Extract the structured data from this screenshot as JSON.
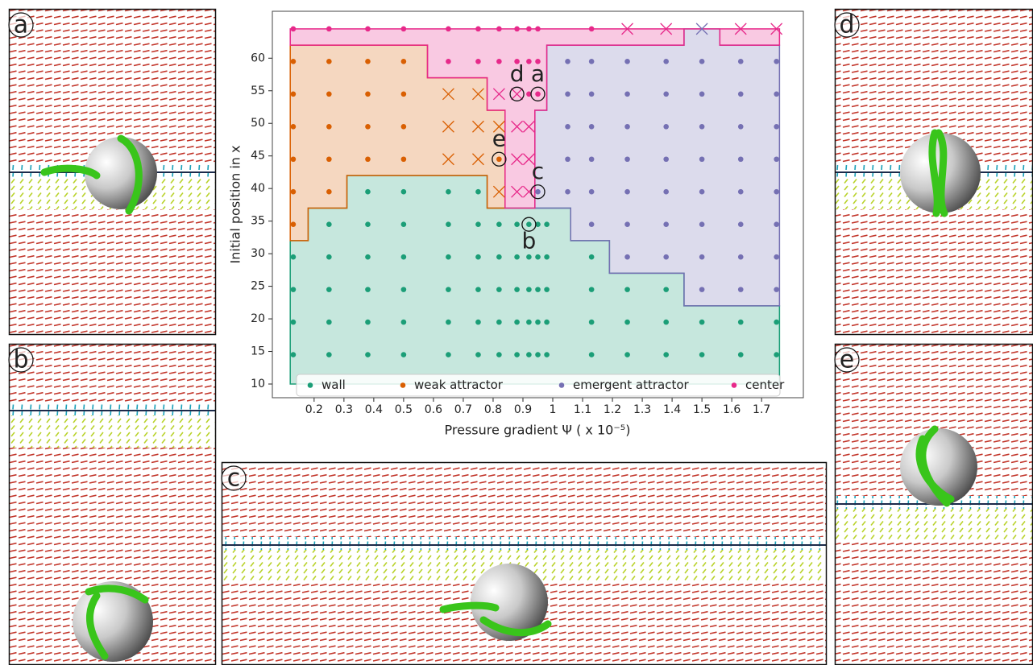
{
  "chart_data": {
    "type": "scatter",
    "xlabel": "Pressure gradient Ψ ( x 10⁻⁵)",
    "ylabel": "Initial position in x",
    "xlim": [
      0.06,
      1.84
    ],
    "ylim": [
      7.9,
      67.2
    ],
    "xticks": [
      0.2,
      0.3,
      0.4,
      0.5,
      0.6,
      0.7,
      0.8,
      0.9,
      1.0,
      1.1,
      1.2,
      1.3,
      1.4,
      1.5,
      1.6,
      1.7
    ],
    "yticks": [
      10,
      15,
      20,
      25,
      30,
      35,
      40,
      45,
      50,
      55,
      60
    ],
    "legend": "lower center",
    "series": [
      {
        "name": "wall",
        "color": "#1b9e77",
        "x": [
          0.13,
          0.25,
          0.38,
          0.5,
          0.65,
          0.75,
          0.82,
          0.88,
          0.92,
          0.95,
          0.98,
          1.13,
          1.25,
          1.38,
          1.5,
          1.63,
          1.75,
          0.13,
          0.25,
          0.38,
          0.5,
          0.65,
          0.75,
          0.82,
          0.88,
          0.92,
          0.95,
          0.98,
          1.13,
          1.25,
          1.38,
          1.5,
          1.63,
          1.75,
          0.13,
          0.25,
          0.38,
          0.5,
          0.65,
          0.75,
          0.82,
          0.88,
          0.92,
          0.95,
          0.98,
          1.13,
          1.25,
          1.38,
          0.13,
          0.25,
          0.38,
          0.5,
          0.65,
          0.75,
          0.82,
          0.88,
          0.92,
          0.95,
          0.98,
          1.13,
          0.25,
          0.38,
          0.5,
          0.65,
          0.75,
          0.82,
          0.88,
          0.92,
          0.95,
          0.98,
          0.38,
          0.5,
          0.65,
          0.75
        ],
        "values": [
          14.5,
          14.5,
          14.5,
          14.5,
          14.5,
          14.5,
          14.5,
          14.5,
          14.5,
          14.5,
          14.5,
          14.5,
          14.5,
          14.5,
          14.5,
          14.5,
          14.5,
          19.5,
          19.5,
          19.5,
          19.5,
          19.5,
          19.5,
          19.5,
          19.5,
          19.5,
          19.5,
          19.5,
          19.5,
          19.5,
          19.5,
          19.5,
          19.5,
          19.5,
          24.5,
          24.5,
          24.5,
          24.5,
          24.5,
          24.5,
          24.5,
          24.5,
          24.5,
          24.5,
          24.5,
          24.5,
          24.5,
          24.5,
          29.5,
          29.5,
          29.5,
          29.5,
          29.5,
          29.5,
          29.5,
          29.5,
          29.5,
          29.5,
          29.5,
          29.5,
          34.5,
          34.5,
          34.5,
          34.5,
          34.5,
          34.5,
          34.5,
          34.5,
          34.5,
          34.5,
          39.5,
          39.5,
          39.5,
          39.5
        ],
        "cross_x": [],
        "cross_values": [],
        "region_x": [
          0.12,
          0.12,
          0.18,
          0.18,
          0.31,
          0.31,
          0.78,
          0.78,
          1.06,
          1.06,
          1.19,
          1.19,
          1.44,
          1.44,
          1.76,
          1.76
        ],
        "region_y": [
          10,
          32,
          32,
          37,
          37,
          42,
          42,
          37,
          37,
          32,
          32,
          27,
          27,
          22,
          22,
          10
        ]
      },
      {
        "name": "weak attractor",
        "color": "#d95f02",
        "x": [
          0.13,
          0.13,
          0.25,
          0.13,
          0.25,
          0.38,
          0.5,
          0.82,
          0.13,
          0.25,
          0.38,
          0.5,
          0.13,
          0.25,
          0.38,
          0.5,
          0.13,
          0.25,
          0.38,
          0.5
        ],
        "values": [
          34.5,
          39.5,
          39.5,
          44.5,
          44.5,
          44.5,
          44.5,
          44.5,
          49.5,
          49.5,
          49.5,
          49.5,
          54.5,
          54.5,
          54.5,
          54.5,
          59.5,
          59.5,
          59.5,
          59.5
        ],
        "cross_x": [
          0.82,
          0.65,
          0.75,
          0.65,
          0.75,
          0.82,
          0.65,
          0.75
        ],
        "cross_values": [
          39.5,
          44.5,
          44.5,
          49.5,
          49.5,
          49.5,
          54.5,
          54.5
        ],
        "region_x": [
          0.12,
          0.12,
          0.58,
          0.58,
          0.78,
          0.78,
          0.84,
          0.84,
          0.78,
          0.78,
          0.31,
          0.31,
          0.18,
          0.18
        ],
        "region_y": [
          32,
          62,
          62,
          57,
          57,
          52,
          52,
          37,
          37,
          42,
          42,
          37,
          37,
          32
        ]
      },
      {
        "name": "emergent attractor",
        "color": "#7570b3",
        "x": [
          1.5,
          1.63,
          1.75,
          1.25,
          1.38,
          1.5,
          1.63,
          1.75,
          1.13,
          1.25,
          1.38,
          1.5,
          1.63,
          1.75,
          0.95,
          1.05,
          1.13,
          1.25,
          1.38,
          1.5,
          1.63,
          1.75,
          1.05,
          1.13,
          1.25,
          1.38,
          1.5,
          1.63,
          1.75,
          1.05,
          1.13,
          1.25,
          1.38,
          1.5,
          1.63,
          1.75,
          1.05,
          1.13,
          1.25,
          1.38,
          1.5,
          1.63,
          1.75,
          1.05,
          1.13,
          1.25,
          1.38,
          1.5,
          1.63,
          1.75
        ],
        "values": [
          24.5,
          24.5,
          24.5,
          29.5,
          29.5,
          29.5,
          29.5,
          29.5,
          34.5,
          34.5,
          34.5,
          34.5,
          34.5,
          34.5,
          39.5,
          39.5,
          39.5,
          39.5,
          39.5,
          39.5,
          39.5,
          39.5,
          44.5,
          44.5,
          44.5,
          44.5,
          44.5,
          44.5,
          44.5,
          49.5,
          49.5,
          49.5,
          49.5,
          49.5,
          49.5,
          49.5,
          54.5,
          54.5,
          54.5,
          54.5,
          54.5,
          54.5,
          54.5,
          59.5,
          59.5,
          59.5,
          59.5,
          59.5,
          59.5,
          59.5
        ],
        "cross_x": [
          1.5
        ],
        "cross_values": [
          64.5
        ],
        "region_x": [
          0.94,
          0.94,
          0.98,
          0.98,
          1.44,
          1.44,
          1.56,
          1.56,
          1.76,
          1.76,
          1.44,
          1.44,
          1.19,
          1.19,
          1.06,
          1.06
        ],
        "region_y": [
          37,
          52,
          52,
          62,
          62,
          64.5,
          64.5,
          62,
          62,
          22,
          22,
          27,
          27,
          32,
          32,
          37
        ]
      },
      {
        "name": "center",
        "color": "#e7298a",
        "x": [
          0.92,
          0.95,
          0.65,
          0.75,
          0.82,
          0.88,
          0.92,
          0.95,
          0.13,
          0.25,
          0.38,
          0.5,
          0.65,
          0.75,
          0.82,
          0.88,
          0.92,
          0.95,
          1.13
        ],
        "values": [
          54.5,
          54.5,
          59.5,
          59.5,
          59.5,
          59.5,
          59.5,
          59.5,
          64.5,
          64.5,
          64.5,
          64.5,
          64.5,
          64.5,
          64.5,
          64.5,
          64.5,
          64.5,
          64.5
        ],
        "cross_x": [
          0.88,
          0.92,
          0.88,
          0.92,
          0.88,
          0.92,
          0.82,
          0.88,
          1.25,
          1.38,
          1.63,
          1.75
        ],
        "cross_values": [
          39.5,
          39.5,
          44.5,
          44.5,
          49.5,
          49.5,
          54.5,
          54.5,
          64.5,
          64.5,
          64.5,
          64.5
        ],
        "region_x": [
          0.12,
          0.12,
          1.76,
          1.76,
          1.56,
          1.56,
          1.44,
          1.44,
          0.98,
          0.98,
          0.94,
          0.94,
          0.84,
          0.84,
          0.78,
          0.78,
          0.58,
          0.58
        ],
        "region_y": [
          62,
          64.5,
          64.5,
          62,
          62,
          64.5,
          64.5,
          62,
          62,
          52,
          52,
          37,
          37,
          52,
          52,
          57,
          57,
          62
        ]
      }
    ],
    "annotations": [
      {
        "text": "a",
        "x": 0.95,
        "y": 54.5,
        "label_position": "above"
      },
      {
        "text": "b",
        "x": 0.92,
        "y": 34.5,
        "label_position": "below"
      },
      {
        "text": "c",
        "x": 0.95,
        "y": 39.5,
        "label_position": "above"
      },
      {
        "text": "d",
        "x": 0.88,
        "y": 54.5,
        "label_position": "above"
      },
      {
        "text": "e",
        "x": 0.82,
        "y": 44.5,
        "label_position": "above"
      }
    ]
  },
  "panels": [
    {
      "label": "a"
    },
    {
      "label": "b"
    },
    {
      "label": "c"
    },
    {
      "label": "d"
    },
    {
      "label": "e"
    }
  ]
}
